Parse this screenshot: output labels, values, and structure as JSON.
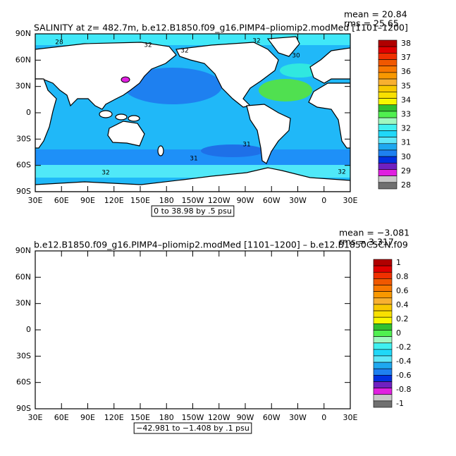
{
  "panels": [
    {
      "title": "SALINITY at z= 482.7m, b.e12.B1850.f09_g16.PIMP4–pliomip2.modMed [1101–1200]",
      "mean": "mean = 20.84",
      "rms": "rms = 25.65",
      "lat_labels": [
        "90N",
        "60N",
        "30N",
        "0",
        "30S",
        "60S",
        "90S"
      ],
      "lon_labels": [
        "30E",
        "60E",
        "90E",
        "120E",
        "150E",
        "180",
        "150W",
        "120W",
        "90W",
        "60W",
        "30W",
        "0",
        "30E"
      ],
      "colorbar": {
        "labels": [
          38,
          37,
          36,
          35,
          34,
          33,
          32,
          31,
          30,
          29,
          28
        ],
        "colors": [
          "#b00000",
          "#e00000",
          "#f03000",
          "#f05800",
          "#f87800",
          "#f89800",
          "#f8b030",
          "#f8c800",
          "#f8e000",
          "#f8f800",
          "#30c030",
          "#50f050",
          "#a0f8c0",
          "#40f0f0",
          "#20d8f8",
          "#60e8f8",
          "#1ea8f0",
          "#1e80f0",
          "#0030e0",
          "#7020c0",
          "#e020e0",
          "#c8c8c8",
          "#707070"
        ]
      },
      "info": "0 to 38.98 by .5 psu",
      "contour_labels": [
        "28",
        "32",
        "32",
        "32",
        "30",
        "31",
        "31",
        "32",
        "32"
      ]
    },
    {
      "title": "b.e12.B1850.f09_g16.PIMP4–pliomip2.modMed [1101–1200] – b.e12.B1850C5CN.f09",
      "mean": "mean = −3.081",
      "rms": "rms = 3.317",
      "lat_labels": [
        "90N",
        "60N",
        "30N",
        "0",
        "30S",
        "60S",
        "90S"
      ],
      "lon_labels": [
        "30E",
        "60E",
        "90E",
        "120E",
        "150E",
        "180",
        "150W",
        "120W",
        "90W",
        "60W",
        "30W",
        "0",
        "30E"
      ],
      "colorbar": {
        "labels": [
          1,
          0.8,
          0.6,
          0.4,
          0.2,
          0,
          -0.2,
          -0.4,
          -0.6,
          -0.8,
          -1
        ],
        "colors": [
          "#b00000",
          "#e00000",
          "#f03000",
          "#f05800",
          "#f87800",
          "#f89800",
          "#f8b030",
          "#f8c800",
          "#f8e000",
          "#f8f800",
          "#30c030",
          "#50f050",
          "#a0f8c0",
          "#40f0f0",
          "#20d8f8",
          "#60e8f8",
          "#1ea8f0",
          "#1e80f0",
          "#0030e0",
          "#7020c0",
          "#e020e0",
          "#c8c8c8",
          "#707070"
        ]
      },
      "info": "−42.981 to −1.408 by .1 psu"
    }
  ]
}
